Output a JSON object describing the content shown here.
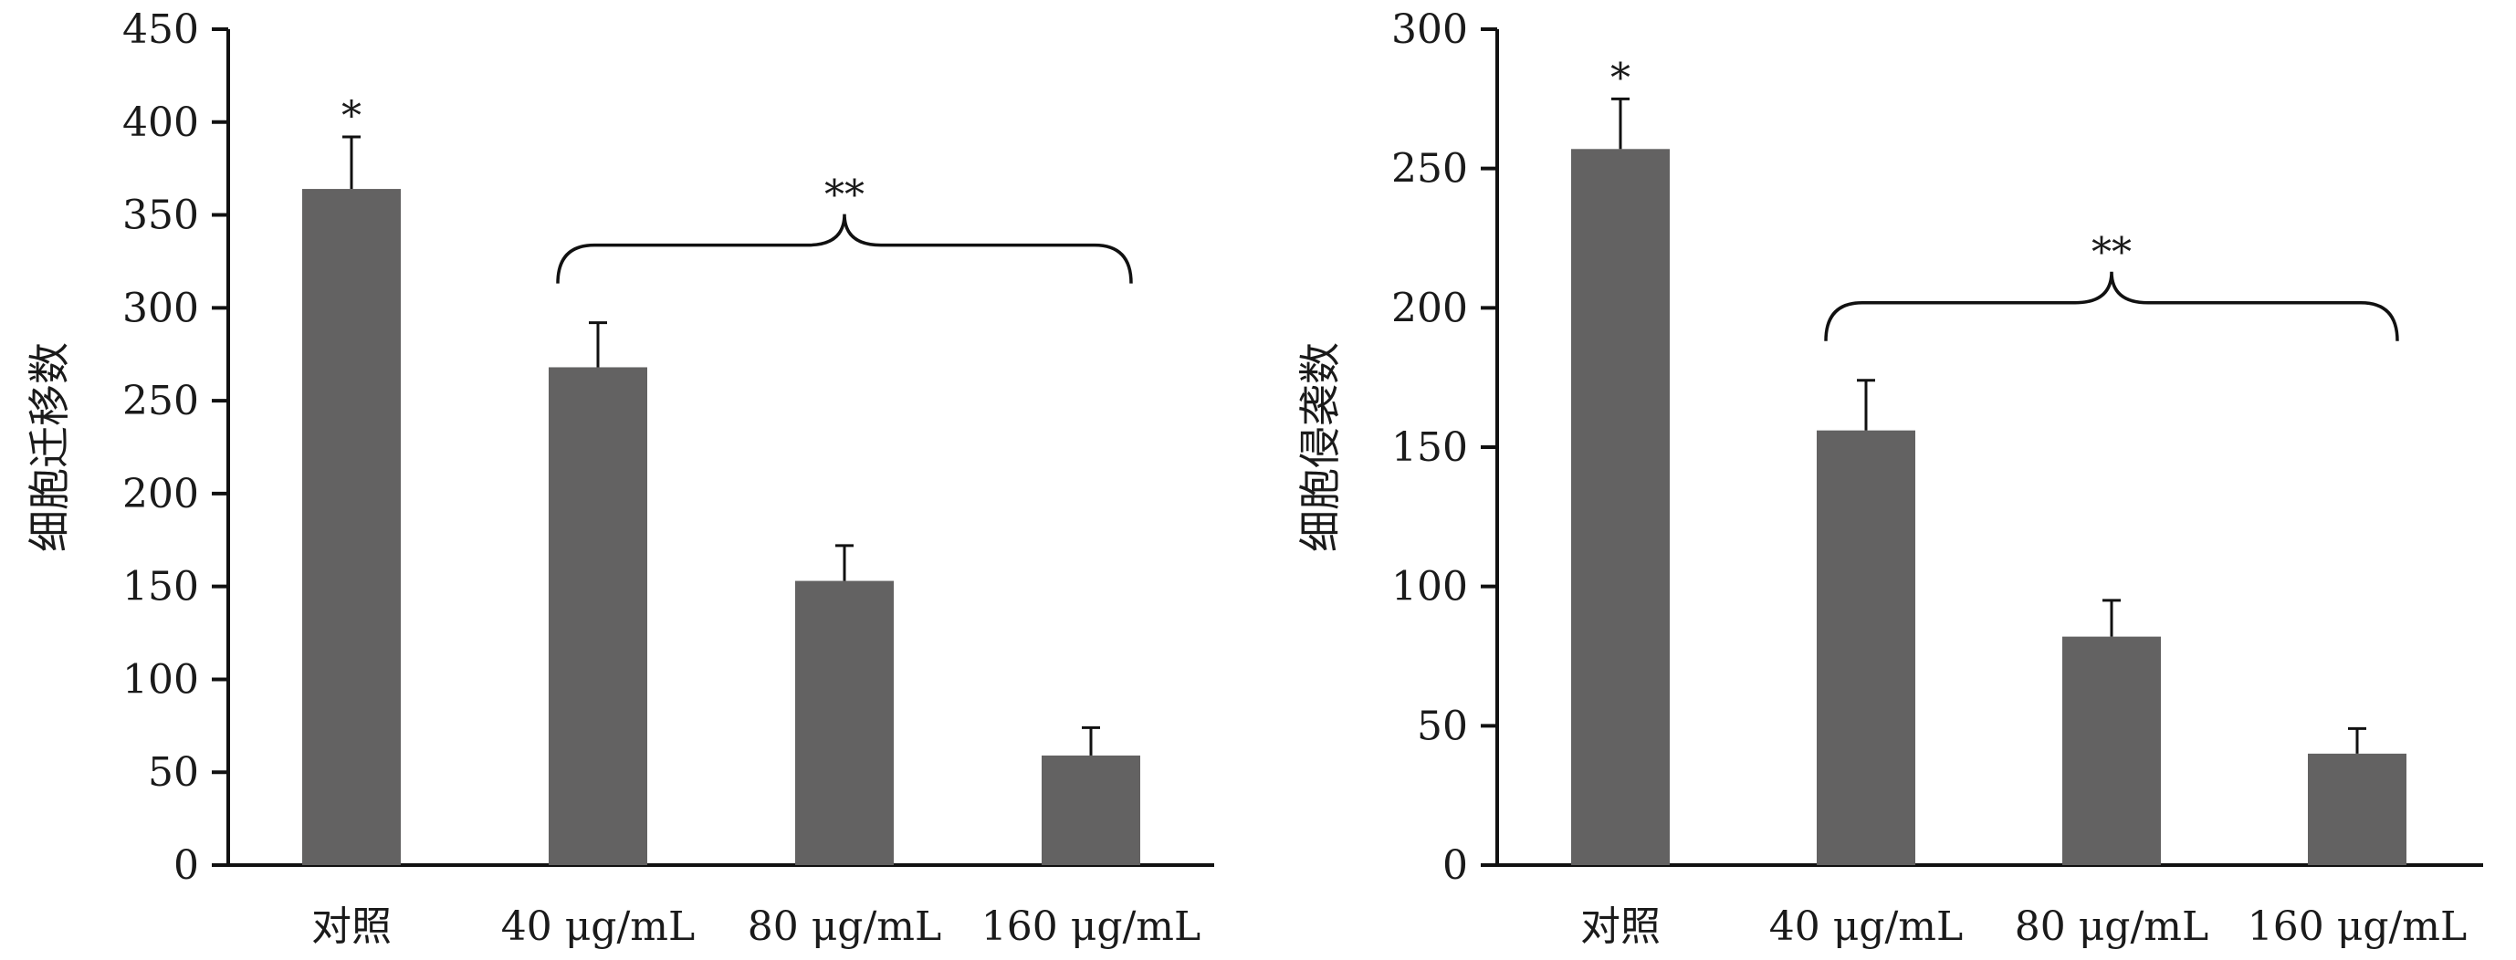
{
  "colors": {
    "bar": "#636262",
    "axis": "#111111",
    "text": "#1a1a1a"
  },
  "chart_data": [
    {
      "type": "bar",
      "title": "",
      "xlabel": "",
      "ylabel": "细胞迁移数",
      "ylim": [
        0,
        450
      ],
      "yticks": [
        0,
        50,
        100,
        150,
        200,
        250,
        300,
        350,
        400,
        450
      ],
      "categories": [
        "对照",
        "40 μg/mL",
        "80 μg/mL",
        "160 μg/mL"
      ],
      "values": [
        364,
        268,
        153,
        59
      ],
      "error": [
        28,
        24,
        19,
        15
      ],
      "annotations": [
        {
          "text": "*",
          "category_index": 0
        },
        {
          "text": "**",
          "bracket_from": 1,
          "bracket_to": 3
        }
      ]
    },
    {
      "type": "bar",
      "title": "",
      "xlabel": "",
      "ylabel": "细胞侵袭数",
      "ylim": [
        0,
        300
      ],
      "yticks": [
        0,
        50,
        100,
        150,
        200,
        250,
        300
      ],
      "categories": [
        "对照",
        "40 μg/mL",
        "80 μg/mL",
        "160 μg/mL"
      ],
      "values": [
        257,
        156,
        82,
        40
      ],
      "error": [
        18,
        18,
        13,
        9
      ],
      "annotations": [
        {
          "text": "*",
          "category_index": 0
        },
        {
          "text": "**",
          "bracket_from": 1,
          "bracket_to": 3
        }
      ]
    }
  ]
}
